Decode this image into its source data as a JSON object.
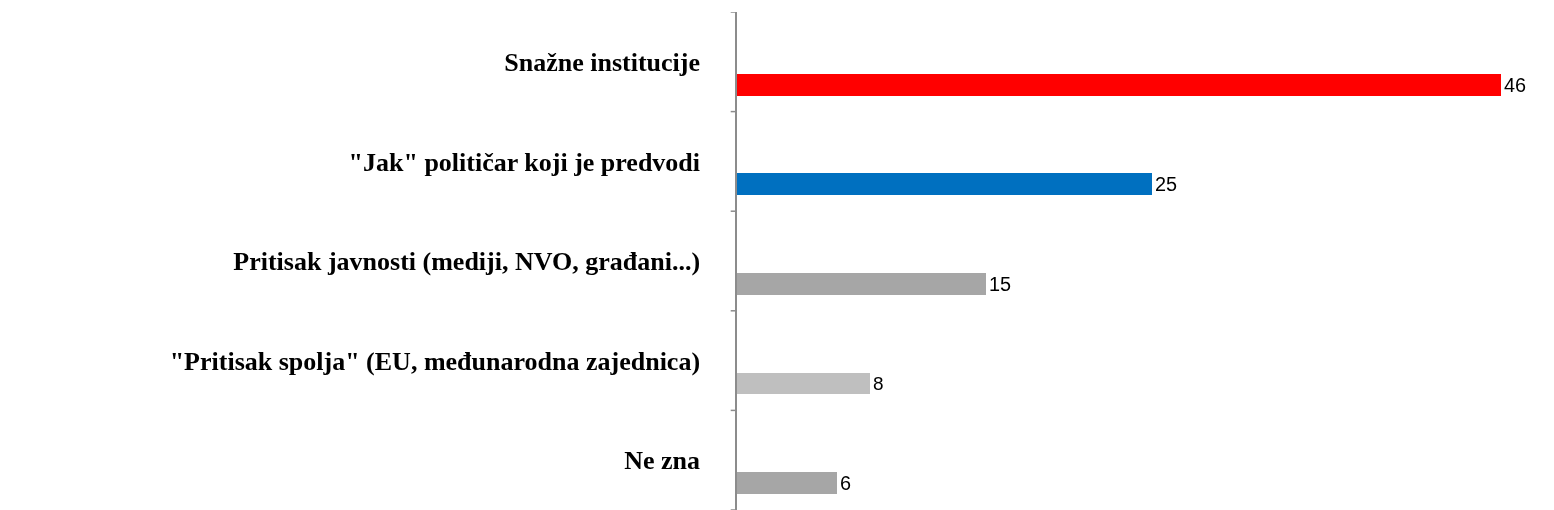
{
  "chart_data": {
    "type": "bar",
    "orientation": "horizontal",
    "categories": [
      "Snažne institucije",
      "\"Jak\" političar koji je predvodi",
      "Pritisak javnosti (mediji, NVO, građani...)",
      "\"Pritisak spolja\" (EU, međunarodna zajednica)",
      "Ne zna"
    ],
    "values": [
      46,
      25,
      15,
      8,
      6
    ],
    "colors": [
      "#ff0000",
      "#0070c0",
      "#a6a6a6",
      "#bfbfbf",
      "#a6a6a6"
    ],
    "data_labels": true
  }
}
